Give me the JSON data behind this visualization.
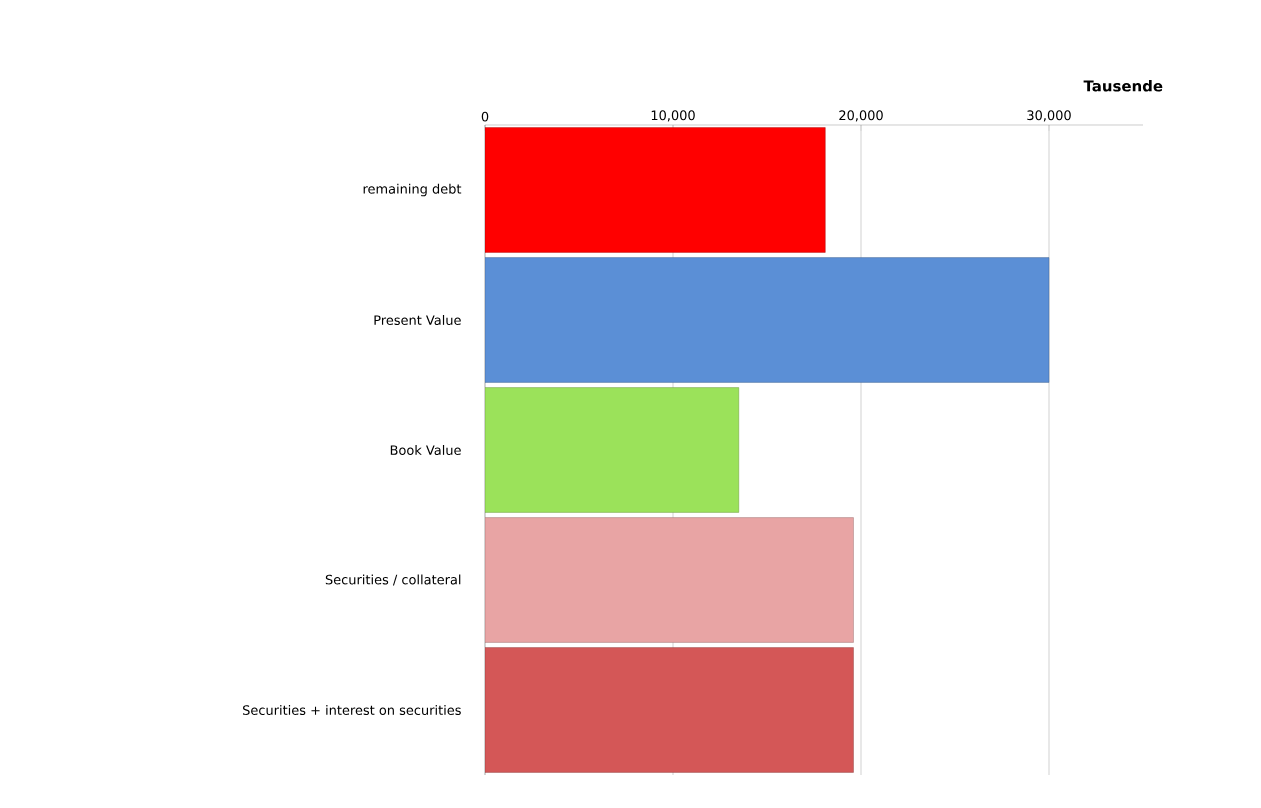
{
  "chart_data": {
    "type": "bar",
    "orientation": "horizontal",
    "xlabel": "Tausende",
    "categories": [
      "remaining debt",
      "Present Value",
      "Book Value",
      "Securities / collateral",
      "Securities + interest on securities"
    ],
    "values": [
      18100,
      30000,
      13500,
      19600,
      19600
    ],
    "colors": [
      "#ff0000",
      "#5b8fd6",
      "#9be25a",
      "#e8a4a4",
      "#d45757"
    ],
    "xlim": [
      0,
      35000
    ],
    "xticks": [
      0,
      {
        "value": 10000,
        "label": "10,000"
      },
      {
        "value": 20000,
        "label": "20,000"
      },
      {
        "value": 30000,
        "label": "30,000"
      }
    ],
    "grid": "x"
  }
}
